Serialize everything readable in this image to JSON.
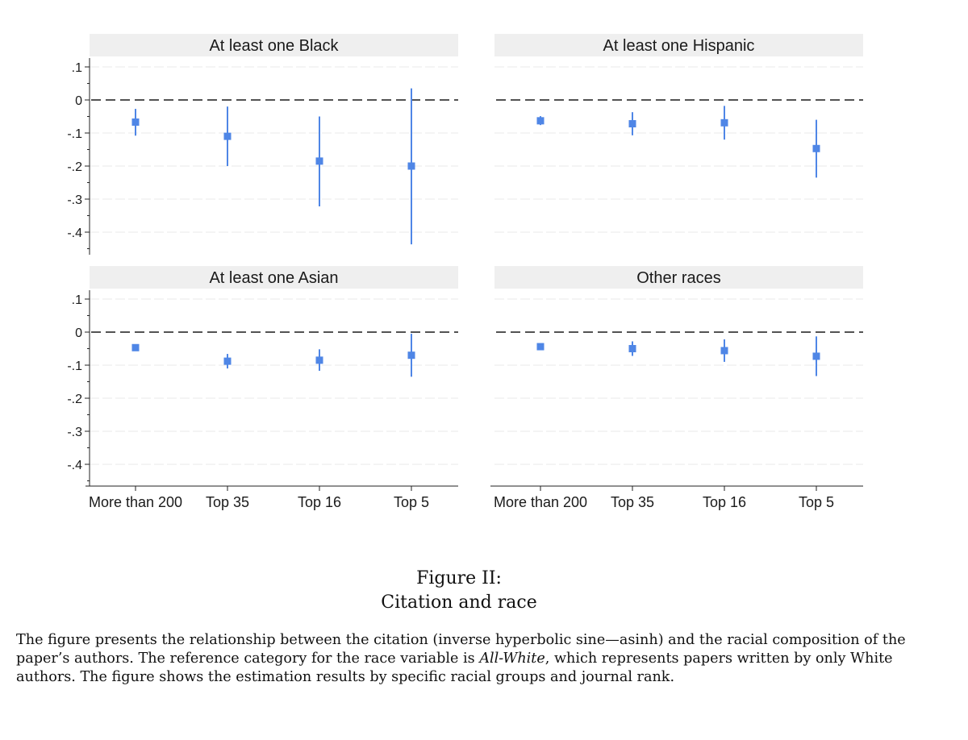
{
  "chart_data": [
    {
      "type": "scatter",
      "title": "At least one Black",
      "categories": [
        "More than 200",
        "Top 35",
        "Top 16",
        "Top 5"
      ],
      "yticks": [
        ".1",
        "0",
        "-.1",
        "-.2",
        "-.3",
        "-.4"
      ],
      "ylim": [
        -0.465,
        0.125
      ],
      "reference_line": 0,
      "values": [
        -0.067,
        -0.11,
        -0.185,
        -0.2
      ],
      "ci_low": [
        -0.108,
        -0.2,
        -0.322,
        -0.437
      ],
      "ci_high": [
        -0.027,
        -0.02,
        -0.05,
        0.035
      ]
    },
    {
      "type": "scatter",
      "title": "At least one Hispanic",
      "categories": [
        "More than 200",
        "Top 35",
        "Top 16",
        "Top 5"
      ],
      "yticks": [
        ".1",
        "0",
        "-.1",
        "-.2",
        "-.3",
        "-.4"
      ],
      "ylim": [
        -0.465,
        0.125
      ],
      "reference_line": 0,
      "values": [
        -0.063,
        -0.072,
        -0.069,
        -0.147
      ],
      "ci_low": [
        -0.076,
        -0.107,
        -0.12,
        -0.235
      ],
      "ci_high": [
        -0.049,
        -0.037,
        -0.018,
        -0.06
      ]
    },
    {
      "type": "scatter",
      "title": "At least one Asian",
      "categories": [
        "More than 200",
        "Top 35",
        "Top 16",
        "Top 5"
      ],
      "yticks": [
        ".1",
        "0",
        "-.1",
        "-.2",
        "-.3",
        "-.4"
      ],
      "ylim": [
        -0.465,
        0.125
      ],
      "reference_line": 0,
      "values": [
        -0.047,
        -0.088,
        -0.085,
        -0.07
      ],
      "ci_low": [
        -0.053,
        -0.11,
        -0.117,
        -0.135
      ],
      "ci_high": [
        -0.04,
        -0.066,
        -0.052,
        -0.005
      ]
    },
    {
      "type": "scatter",
      "title": "Other races",
      "categories": [
        "More than 200",
        "Top 35",
        "Top 16",
        "Top 5"
      ],
      "yticks": [
        ".1",
        "0",
        "-.1",
        "-.2",
        "-.3",
        "-.4"
      ],
      "ylim": [
        -0.465,
        0.125
      ],
      "reference_line": 0,
      "values": [
        -0.044,
        -0.05,
        -0.056,
        -0.073
      ],
      "ci_low": [
        -0.05,
        -0.072,
        -0.09,
        -0.133
      ],
      "ci_high": [
        -0.038,
        -0.028,
        -0.022,
        -0.013
      ]
    }
  ],
  "colors": {
    "marker": "#4f86e6",
    "strip": "#efefef",
    "reference_line": "#1a1a1a",
    "grid": "#e8e8e8"
  },
  "caption": {
    "figure_number": "Figure II:",
    "figure_title": "Citation and race",
    "description_before": "The figure presents the relationship between the citation (inverse hyperbolic sine—asinh) and the racial composition of the paper’s authors. The reference category for the race variable is ",
    "description_emphasis": "All-White",
    "description_after": ", which represents papers written by only White authors. The figure shows the estimation results by specific racial groups and journal rank."
  }
}
